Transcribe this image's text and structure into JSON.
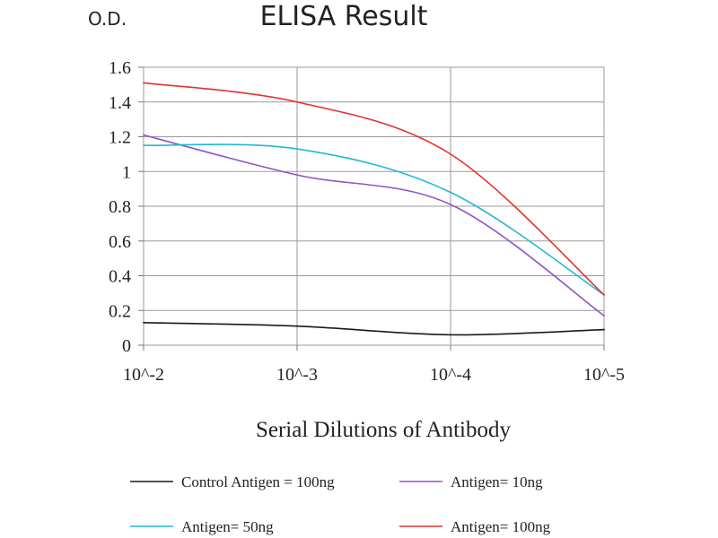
{
  "chart_data": {
    "type": "line",
    "title": "ELISA Result",
    "ylabel": "O.D.",
    "xlabel": "Serial Dilutions of Antibody",
    "categories": [
      "10^-2",
      "10^-3",
      "10^-4",
      "10^-5"
    ],
    "ylim": [
      0,
      1.6
    ],
    "yticks": [
      "0",
      "0.2",
      "0.4",
      "0.6",
      "0.8",
      "1",
      "1.2",
      "1.4",
      "1.6"
    ],
    "grid": true,
    "legend_position": "bottom",
    "smooth": true,
    "series": [
      {
        "name": "Control Antigen = 100ng",
        "color": "#1a1a1a",
        "values": [
          0.13,
          0.11,
          0.06,
          0.09
        ]
      },
      {
        "name": "Antigen= 10ng",
        "color": "#8e55c8",
        "values": [
          1.21,
          0.98,
          0.81,
          0.17
        ]
      },
      {
        "name": "Antigen= 50ng",
        "color": "#22b8d4",
        "values": [
          1.15,
          1.13,
          0.88,
          0.29
        ]
      },
      {
        "name": "Antigen= 100ng",
        "color": "#e63030",
        "values": [
          1.51,
          1.4,
          1.1,
          0.29
        ]
      }
    ]
  }
}
